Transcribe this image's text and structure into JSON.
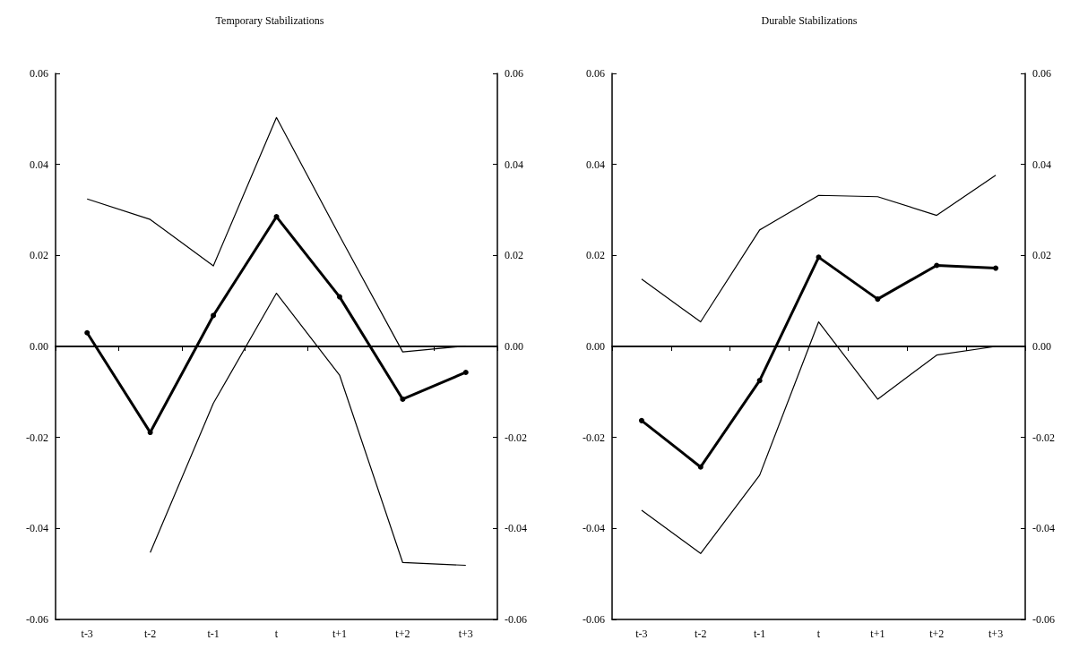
{
  "chart_data": [
    {
      "type": "line",
      "title": "Temporary Stabilizations",
      "categories": [
        "t-3",
        "t-2",
        "t-1",
        "t",
        "t+1",
        "t+2",
        "t+3"
      ],
      "series": [
        {
          "color": "#000000",
          "marker": "none",
          "values": [
            0.0324,
            0.0279,
            0.0177,
            0.0503,
            0.0243,
            -0.0012,
            0.0001
          ]
        },
        {
          "color": "#000000",
          "marker": "circle",
          "values": [
            0.003,
            -0.0189,
            0.0068,
            0.0285,
            0.0109,
            -0.0116,
            -0.0057
          ]
        },
        {
          "color": "#000000",
          "marker": "none",
          "values": [
            null,
            -0.0453,
            -0.0125,
            0.0117,
            -0.0063,
            -0.0475,
            -0.0481
          ]
        }
      ],
      "ylim": [
        -0.06,
        0.06
      ],
      "yticks": [
        -0.06,
        -0.04,
        -0.02,
        {
          "value": 0,
          "label": "0.00"
        },
        0.02,
        0.04,
        0.06
      ],
      "y2lim": [
        -0.06,
        0.06
      ],
      "y2ticks": [
        -0.06,
        -0.04,
        -0.02,
        {
          "value": 0,
          "label": "0.00"
        },
        0.02,
        0.04,
        0.06
      ],
      "tick_labels": true
    },
    {
      "type": "line",
      "title": "Durable Stabilizations",
      "categories": [
        "t-3",
        "t-2",
        "t-1",
        "t",
        "t+1",
        "t+2",
        "t+3"
      ],
      "series": [
        {
          "color": "#000000",
          "marker": "none",
          "values": [
            0.0148,
            0.0054,
            0.0256,
            0.0332,
            0.0329,
            0.0288,
            0.0376
          ]
        },
        {
          "color": "#000000",
          "marker": "circle",
          "values": [
            -0.0163,
            -0.0265,
            -0.0075,
            0.0196,
            0.0104,
            0.0178,
            0.0172
          ]
        },
        {
          "color": "#000000",
          "marker": "none",
          "values": [
            -0.036,
            -0.0455,
            -0.0283,
            0.0054,
            -0.0116,
            -0.0019,
            0.0
          ]
        }
      ],
      "ylim": [
        -0.06,
        0.06
      ],
      "yticks": [
        -0.06,
        -0.04,
        -0.02,
        {
          "value": 0,
          "label": "0.00"
        },
        0.02,
        0.04,
        0.06
      ],
      "y2lim": [
        -0.06,
        0.06
      ],
      "y2ticks": [
        -0.06,
        -0.04,
        -0.02,
        {
          "value": 0,
          "label": "0.00"
        },
        0.02,
        0.04,
        0.06
      ],
      "tick_labels": true
    }
  ]
}
